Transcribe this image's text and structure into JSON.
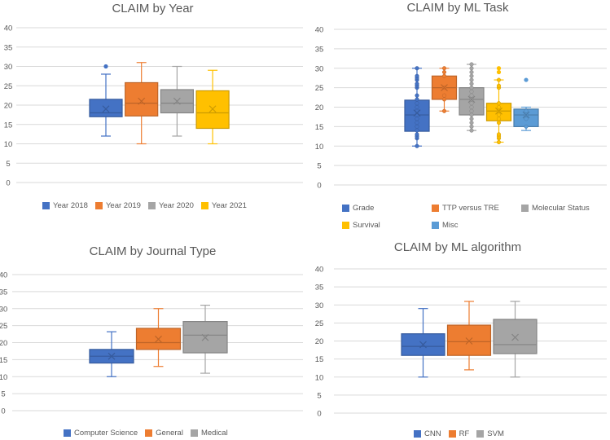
{
  "colors": {
    "blue": "#4472C4",
    "orange": "#ED7D31",
    "gray": "#A5A5A5",
    "yellow": "#FFC000",
    "lightblue": "#5B9BD5"
  },
  "chart_data": [
    {
      "type": "box",
      "title": "CLAIM by Year",
      "ylim": [
        0,
        40
      ],
      "yticks": [
        0,
        5,
        10,
        15,
        20,
        25,
        30,
        35,
        40
      ],
      "grid": true,
      "legend": "bottom",
      "series": [
        {
          "name": "Year 2018",
          "color": "#4472C4",
          "min": 12,
          "q1": 17,
          "median": 18,
          "q3": 21.5,
          "max": 28,
          "mean": 19,
          "outliers": [
            30
          ]
        },
        {
          "name": "Year 2019",
          "color": "#ED7D31",
          "min": 10,
          "q1": 17.2,
          "median": 20.5,
          "q3": 25.8,
          "max": 31,
          "mean": 21,
          "outliers": []
        },
        {
          "name": "Year 2020",
          "color": "#A5A5A5",
          "min": 12,
          "q1": 18,
          "median": 20.5,
          "q3": 24,
          "max": 30,
          "mean": 21,
          "outliers": []
        },
        {
          "name": "Year 2021",
          "color": "#FFC000",
          "min": 10,
          "q1": 14,
          "median": 18,
          "q3": 23.7,
          "max": 29,
          "mean": 19,
          "outliers": []
        }
      ]
    },
    {
      "type": "box",
      "title": "CLAIM by ML Task",
      "ylim": [
        0,
        40
      ],
      "yticks": [
        0,
        5,
        10,
        15,
        20,
        25,
        30,
        35,
        40
      ],
      "grid": true,
      "legend": "bottom",
      "series": [
        {
          "name": "Grade",
          "color": "#4472C4",
          "min": 10,
          "q1": 13.8,
          "median": 18,
          "q3": 21.8,
          "max": 30,
          "mean": 18.5,
          "outliers": [],
          "points": [
            10,
            12,
            12.5,
            13,
            14,
            15,
            16,
            17,
            18,
            19,
            20,
            21,
            22,
            23,
            25,
            25.5,
            26,
            27,
            27.5,
            28,
            30
          ]
        },
        {
          "name": "TTP versus TRE",
          "color": "#ED7D31",
          "min": 19,
          "q1": 22,
          "median": 25,
          "q3": 28,
          "max": 30,
          "mean": 25,
          "outliers": [],
          "points": [
            19,
            22,
            23,
            25,
            28,
            29,
            30
          ]
        },
        {
          "name": "Molecular Status",
          "color": "#A5A5A5",
          "min": 14,
          "q1": 18,
          "median": 22,
          "q3": 25,
          "max": 31,
          "mean": 22,
          "outliers": [],
          "points": [
            14,
            15,
            16,
            17,
            18,
            19,
            20,
            21,
            22,
            23,
            24,
            25,
            26,
            27,
            28,
            29,
            30,
            31
          ]
        },
        {
          "name": "Survival",
          "color": "#FFC000",
          "min": 11,
          "q1": 16.5,
          "median": 19,
          "q3": 21,
          "max": 27,
          "mean": 19,
          "outliers": [
            29,
            30
          ],
          "points": [
            11,
            12,
            12.5,
            13,
            16,
            17,
            18,
            19,
            20,
            21,
            25,
            25.5,
            27
          ]
        },
        {
          "name": "Misc",
          "color": "#5B9BD5",
          "min": 14,
          "q1": 15,
          "median": 18,
          "q3": 19.5,
          "max": 20,
          "mean": 18,
          "outliers": [
            27
          ],
          "points": [
            15,
            17,
            18,
            19
          ]
        }
      ]
    },
    {
      "type": "box",
      "title": "CLAIM by Journal Type",
      "ylim": [
        0,
        40
      ],
      "yticks": [
        0,
        5,
        10,
        15,
        20,
        25,
        30,
        35,
        40
      ],
      "grid": true,
      "legend": "bottom",
      "series": [
        {
          "name": "Computer Science",
          "color": "#4472C4",
          "min": 10,
          "q1": 14,
          "median": 16,
          "q3": 18,
          "max": 23.2,
          "mean": 16,
          "outliers": []
        },
        {
          "name": "General",
          "color": "#ED7D31",
          "min": 13,
          "q1": 18,
          "median": 20,
          "q3": 24.2,
          "max": 30,
          "mean": 21,
          "outliers": []
        },
        {
          "name": "Medical",
          "color": "#A5A5A5",
          "min": 11,
          "q1": 17,
          "median": 22.2,
          "q3": 26.2,
          "max": 31,
          "mean": 21.5,
          "outliers": []
        }
      ]
    },
    {
      "type": "box",
      "title": "CLAIM by ML algorithm",
      "ylim": [
        0,
        40
      ],
      "yticks": [
        0,
        5,
        10,
        15,
        20,
        25,
        30,
        35,
        40
      ],
      "grid": true,
      "legend": "bottom",
      "series": [
        {
          "name": "CNN",
          "color": "#4472C4",
          "min": 10,
          "q1": 16,
          "median": 18.5,
          "q3": 22,
          "max": 29,
          "mean": 19,
          "outliers": []
        },
        {
          "name": "RF",
          "color": "#ED7D31",
          "min": 12,
          "q1": 16,
          "median": 19.8,
          "q3": 24.4,
          "max": 31,
          "mean": 20,
          "outliers": []
        },
        {
          "name": "SVM",
          "color": "#A5A5A5",
          "min": 10,
          "q1": 16.5,
          "median": 19,
          "q3": 26,
          "max": 31,
          "mean": 21,
          "outliers": []
        }
      ]
    }
  ]
}
